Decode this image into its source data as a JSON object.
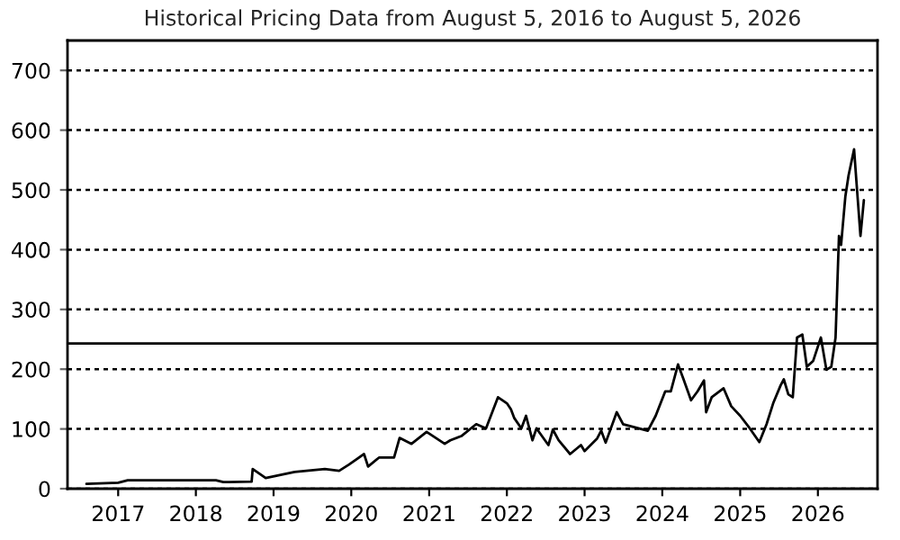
{
  "chart_data": {
    "type": "line",
    "title": "Historical Pricing Data from August 5, 2016 to August 5, 2026",
    "x": [
      "2016-08-05",
      "2017-01-01",
      "2017-02-15",
      "2017-10-15",
      "2018-04-05",
      "2018-05-10",
      "2018-09-20",
      "2018-09-25",
      "2018-11-25",
      "2019-04-10",
      "2019-08-30",
      "2019-11-05",
      "2019-12-20",
      "2020-03-01",
      "2020-03-20",
      "2020-05-10",
      "2020-07-20",
      "2020-08-15",
      "2020-10-10",
      "2020-12-20",
      "2021-03-15",
      "2021-04-10",
      "2021-06-01",
      "2021-08-10",
      "2021-09-25",
      "2021-11-20",
      "2022-01-01",
      "2022-01-20",
      "2022-02-05",
      "2022-03-10",
      "2022-04-01",
      "2022-05-01",
      "2022-05-20",
      "2022-07-15",
      "2022-08-05",
      "2022-09-01",
      "2022-10-25",
      "2022-12-15",
      "2023-01-01",
      "2023-03-01",
      "2023-03-20",
      "2023-04-10",
      "2023-06-01",
      "2023-07-01",
      "2023-10-25",
      "2023-12-01",
      "2024-01-15",
      "2024-02-10",
      "2024-03-15",
      "2024-04-10",
      "2024-05-15",
      "2024-06-15",
      "2024-07-15",
      "2024-07-25",
      "2024-08-20",
      "2024-10-15",
      "2024-11-20",
      "2025-01-01",
      "2025-02-15",
      "2025-04-01",
      "2025-05-05",
      "2025-06-05",
      "2025-07-10",
      "2025-07-25",
      "2025-08-15",
      "2025-09-05",
      "2025-09-25",
      "2025-10-20",
      "2025-11-10",
      "2025-12-10",
      "2026-01-15",
      "2026-02-10",
      "2026-03-05",
      "2026-03-25",
      "2026-04-10",
      "2026-04-20",
      "2026-05-10",
      "2026-05-25",
      "2026-06-20",
      "2026-07-01",
      "2026-07-20",
      "2026-08-05"
    ],
    "series": [
      {
        "color": "#000000",
        "values": [
          8,
          10,
          14,
          14,
          14,
          11,
          12,
          33,
          18,
          28,
          33,
          30,
          40,
          58,
          37,
          52,
          52,
          85,
          75,
          95,
          75,
          81,
          88,
          108,
          101,
          153,
          143,
          133,
          118,
          101,
          122,
          81,
          101,
          73,
          99,
          81,
          58,
          73,
          63,
          84,
          97,
          77,
          128,
          108,
          97,
          122,
          163,
          163,
          208,
          183,
          148,
          163,
          181,
          128,
          153,
          168,
          138,
          122,
          101,
          78,
          108,
          143,
          173,
          183,
          158,
          153,
          253,
          258,
          204,
          214,
          253,
          199,
          204,
          253,
          423,
          408,
          489,
          524,
          568,
          514,
          423,
          483
        ]
      }
    ],
    "xlim": [
      "2016-05-08",
      "2026-10-08"
    ],
    "xticks": [
      {
        "value": "2017-01-01",
        "label": "2017"
      },
      {
        "value": "2018-01-01",
        "label": "2018"
      },
      {
        "value": "2019-01-01",
        "label": "2019"
      },
      {
        "value": "2020-01-01",
        "label": "2020"
      },
      {
        "value": "2021-01-01",
        "label": "2021"
      },
      {
        "value": "2022-01-01",
        "label": "2022"
      },
      {
        "value": "2023-01-01",
        "label": "2023"
      },
      {
        "value": "2024-01-01",
        "label": "2024"
      },
      {
        "value": "2025-01-01",
        "label": "2025"
      },
      {
        "value": "2026-01-01",
        "label": "2026"
      }
    ],
    "ylim": [
      0,
      750
    ],
    "yticks": [
      0,
      100,
      200,
      300,
      400,
      500,
      600,
      700
    ],
    "grid": "y",
    "line_style": "solid",
    "marker": "none",
    "ref_lines": [
      {
        "axis": "y",
        "value": 243,
        "color": "#000000",
        "line_style": "solid"
      }
    ]
  }
}
